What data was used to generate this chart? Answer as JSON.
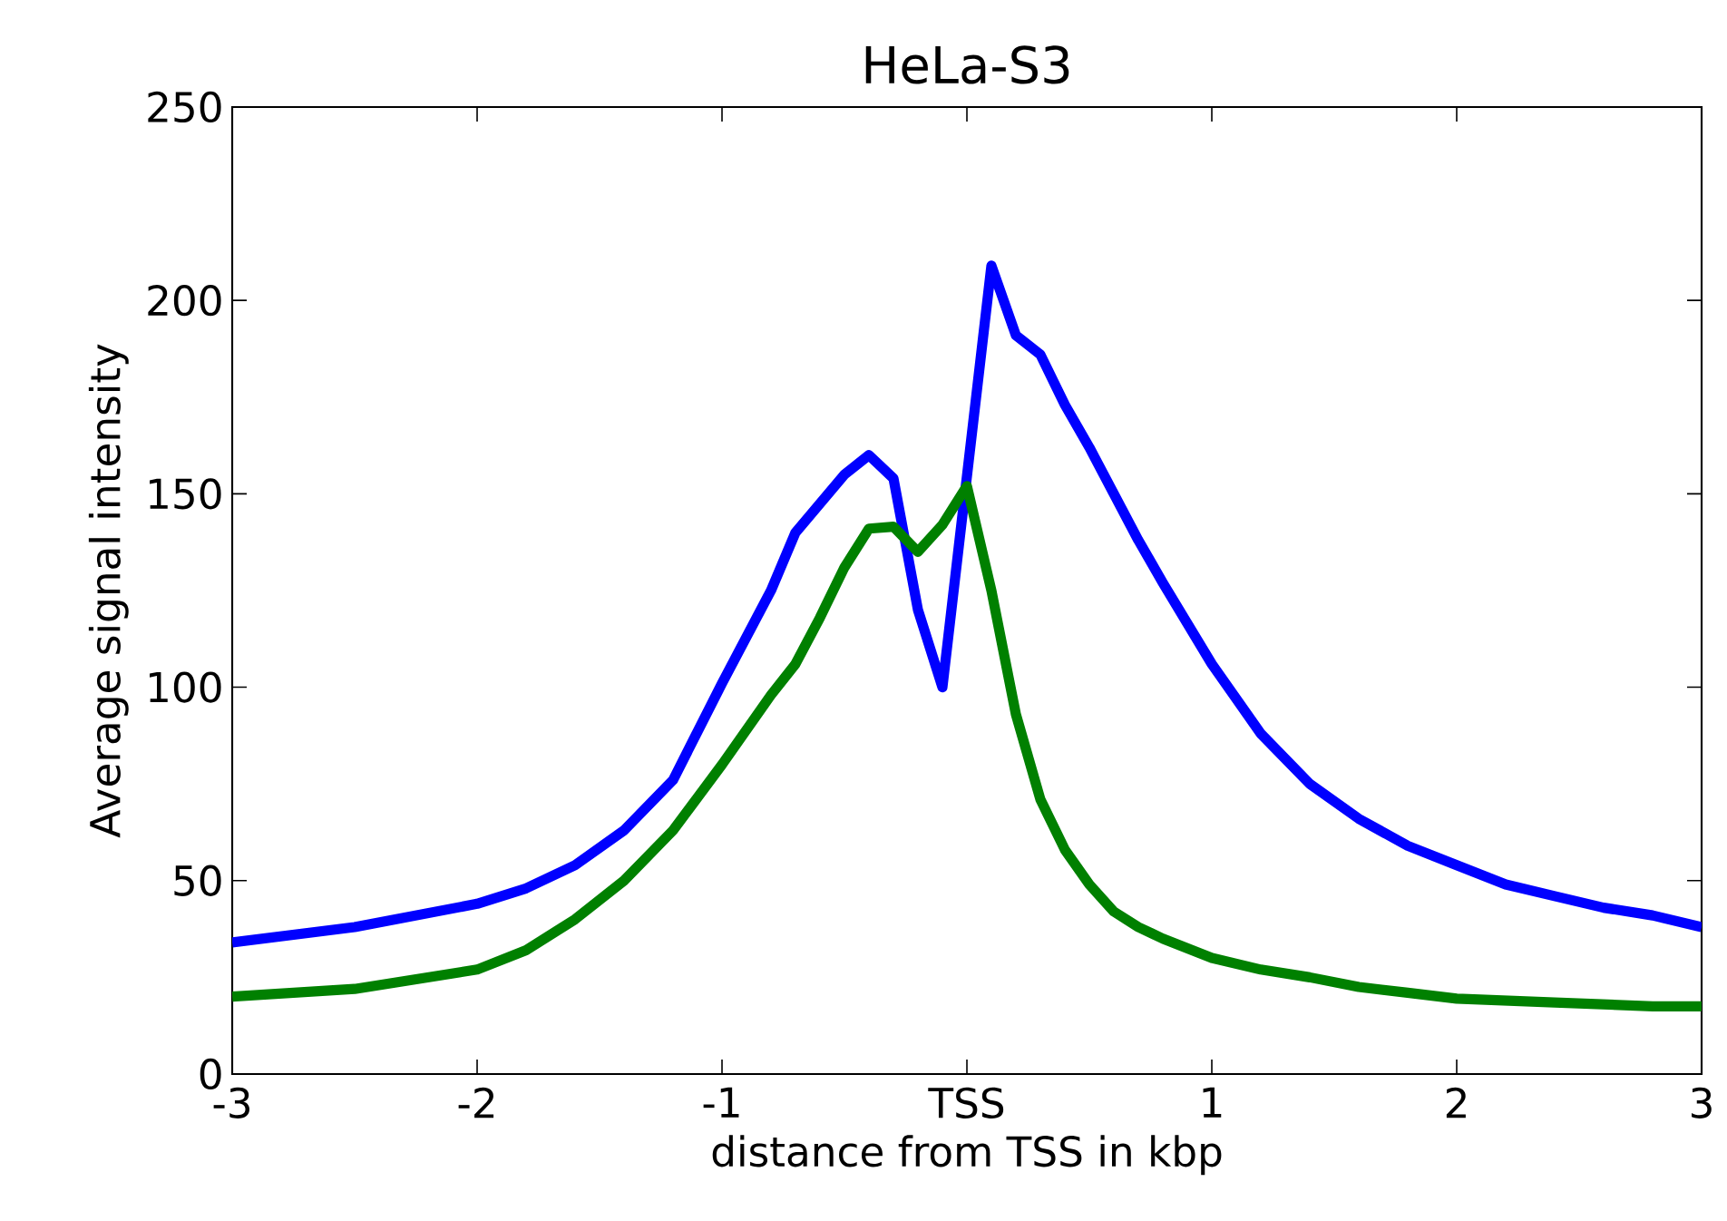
{
  "chart_data": {
    "type": "line",
    "title": "HeLa-S3",
    "xlabel": "distance from TSS in kbp",
    "ylabel": "Average signal intensity",
    "xlim": [
      -3,
      3
    ],
    "ylim": [
      0,
      250
    ],
    "xticks": [
      -3,
      -2,
      -1,
      {
        "value": 0,
        "label": "TSS"
      },
      1,
      2,
      3
    ],
    "yticks": [
      0,
      50,
      100,
      150,
      200,
      250
    ],
    "series": [
      {
        "color": "#0000ff",
        "x": [
          -3,
          -2.5,
          -2,
          -1.8,
          -1.6,
          -1.4,
          -1.2,
          -1.0,
          -0.8,
          -0.7,
          -0.5,
          -0.4,
          -0.3,
          -0.2,
          -0.1,
          0.1,
          0.2,
          0.3,
          0.4,
          0.5,
          0.6,
          0.7,
          0.8,
          1.0,
          1.2,
          1.4,
          1.6,
          1.8,
          2.0,
          2.2,
          2.4,
          2.6,
          2.8,
          3.0
        ],
        "values": [
          34,
          38,
          44,
          48,
          54,
          63,
          76,
          101,
          125,
          140,
          155,
          160,
          154,
          120,
          100,
          209,
          191,
          186,
          173,
          162,
          150,
          138,
          127,
          106,
          88,
          75,
          66,
          59,
          54,
          49,
          46,
          43,
          41,
          38
        ]
      },
      {
        "color": "#008000",
        "x": [
          -3,
          -2.5,
          -2,
          -1.8,
          -1.6,
          -1.4,
          -1.2,
          -1.0,
          -0.8,
          -0.7,
          -0.6,
          -0.5,
          -0.4,
          -0.3,
          -0.2,
          -0.1,
          0.0,
          0.1,
          0.2,
          0.3,
          0.4,
          0.5,
          0.6,
          0.7,
          0.8,
          1.0,
          1.2,
          1.4,
          1.6,
          1.8,
          2.0,
          2.4,
          2.8,
          3.0
        ],
        "values": [
          20,
          22,
          27,
          32,
          40,
          50,
          63,
          80,
          98,
          106,
          118,
          131,
          141,
          141.5,
          135,
          142,
          152,
          125,
          93,
          71,
          58,
          49,
          42,
          38,
          35,
          30,
          27,
          25,
          22.5,
          21,
          19.5,
          18.5,
          17.5,
          17.5
        ]
      }
    ]
  }
}
